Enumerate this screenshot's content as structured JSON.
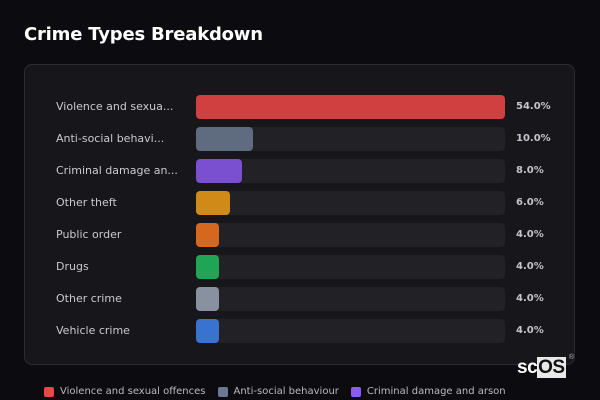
{
  "title": "Crime Types Breakdown",
  "logo": {
    "prefix": "sc",
    "highlight": "OS",
    "mark": "®"
  },
  "chart_data": {
    "type": "bar",
    "orientation": "horizontal",
    "title": "Crime Types Breakdown",
    "xlabel": "",
    "ylabel": "",
    "xlim": [
      0,
      54
    ],
    "grid": false,
    "legend_position": "bottom",
    "categories": [
      "Violence and sexual offences",
      "Anti-social behaviour",
      "Criminal damage and arson",
      "Other theft",
      "Public order",
      "Drugs",
      "Other crime",
      "Vehicle crime"
    ],
    "display_labels": [
      "Violence and sexua...",
      "Anti-social behavi...",
      "Criminal damage an...",
      "Other theft",
      "Public order",
      "Drugs",
      "Other crime",
      "Vehicle crime"
    ],
    "values": [
      54.0,
      10.0,
      8.0,
      6.0,
      4.0,
      4.0,
      4.0,
      4.0
    ],
    "value_labels": [
      "54.0%",
      "10.0%",
      "8.0%",
      "6.0%",
      "4.0%",
      "4.0%",
      "4.0%",
      "4.0%"
    ],
    "colors": [
      "#d04040",
      "#5f6b7e",
      "#7a4fd0",
      "#d08a18",
      "#d5681e",
      "#20a455",
      "#8891a0",
      "#3a72d0"
    ]
  },
  "legend": [
    {
      "label": "Violence and sexual offences",
      "color": "#e54848"
    },
    {
      "label": "Anti-social behaviour",
      "color": "#6b7891"
    },
    {
      "label": "Criminal damage and arson",
      "color": "#8b5cf0"
    }
  ]
}
